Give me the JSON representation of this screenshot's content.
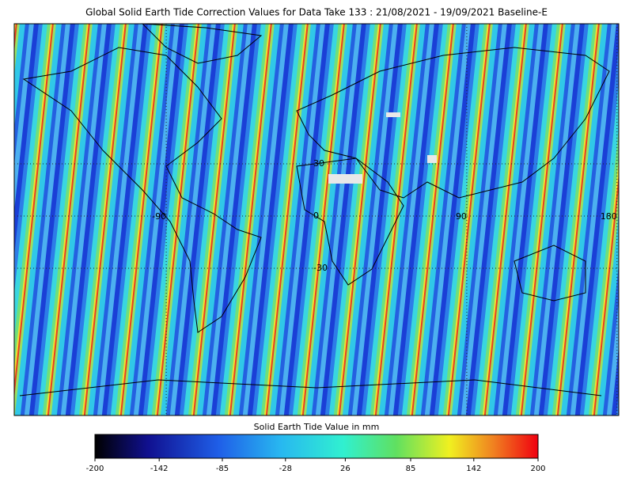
{
  "title": "Global Solid Earth Tide Correction Values for Data Take 133 : 21/08/2021 - 19/09/2021 Baseline-E",
  "map": {
    "latitude_labels": [
      30,
      0,
      -30
    ],
    "longitude_labels": [
      -90,
      90,
      180
    ]
  },
  "colorbar": {
    "label": "Solid Earth Tide Value in mm",
    "range": [
      -200,
      200
    ],
    "ticks": [
      -200,
      -142,
      -85,
      -28,
      26,
      85,
      142,
      200
    ]
  }
}
